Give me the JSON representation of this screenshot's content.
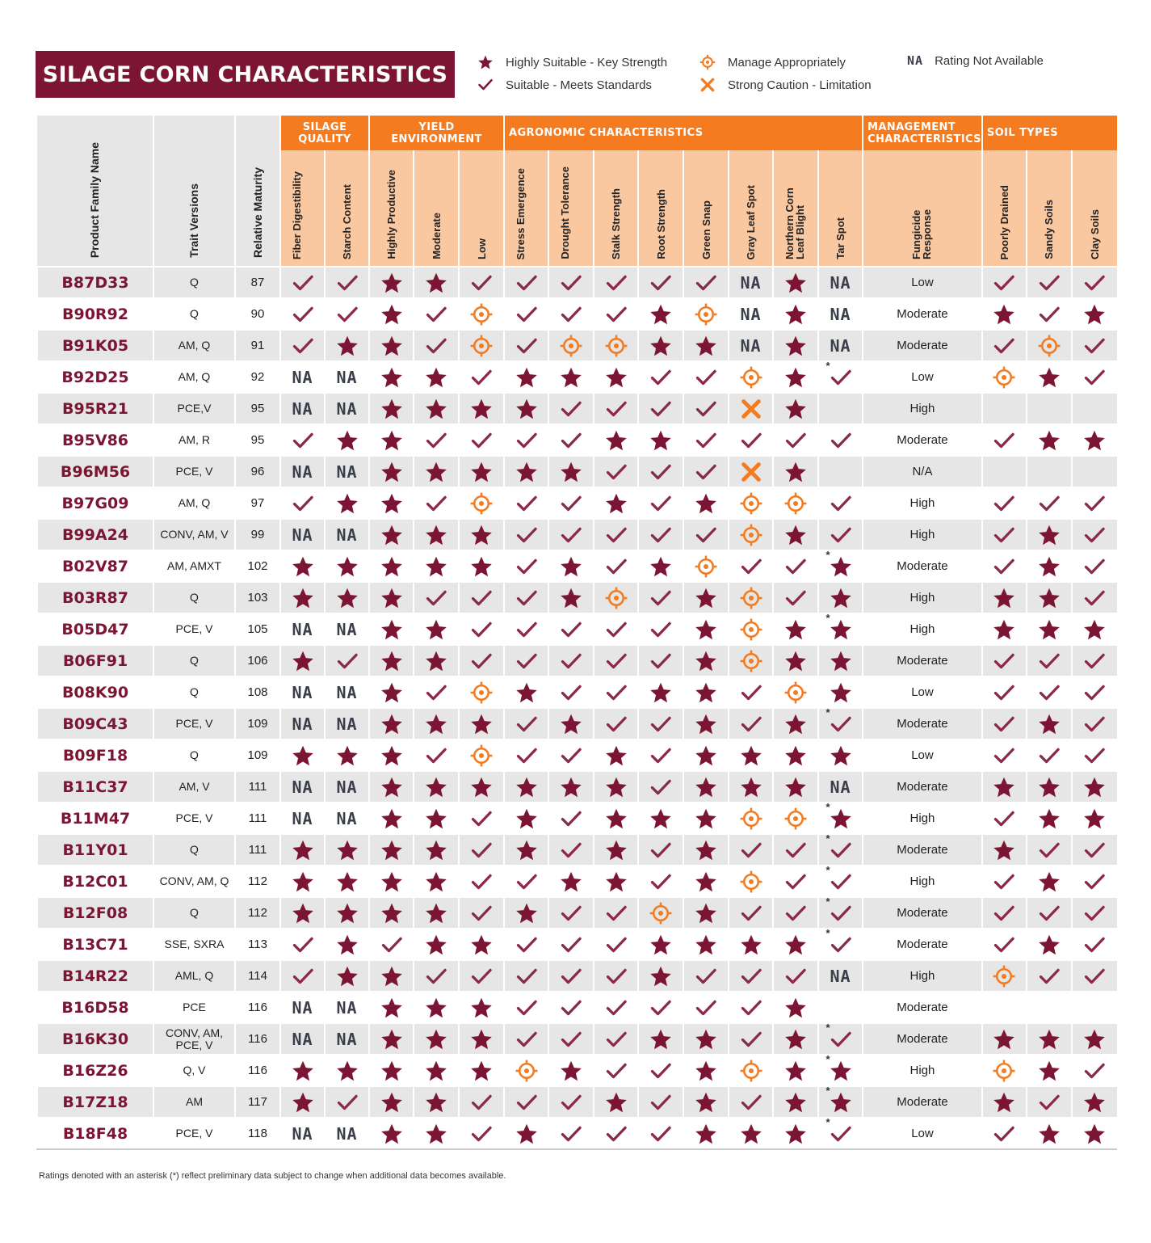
{
  "title": "SILAGE CORN CHARACTERISTICS",
  "colors": {
    "maroon": "#7b1533",
    "orange": "#f47b20",
    "peach": "#f9c7a0",
    "gray": "#e6e6e6",
    "na": "#3a3f4a"
  },
  "legend": {
    "star": "Highly Suitable - Key Strength",
    "check": "Suitable - Meets Standards",
    "target": "Manage Appropriately",
    "x": "Strong Caution - Limitation",
    "na_symbol": "NA",
    "na": "Rating Not Available"
  },
  "headers": {
    "product": "Product Family Name",
    "trait": "Trait Versions",
    "rm": "Relative Maturity",
    "groups": {
      "silage": "SILAGE QUALITY",
      "yield": "YIELD ENVIRONMENT",
      "agro": "AGRONOMIC CHARACTERISTICS",
      "mgmt": "MANAGEMENT CHARACTERISTICS",
      "soil": "SOIL TYPES"
    },
    "cols": {
      "fiber": "Fiber Digestibility",
      "starch": "Starch Content",
      "hp": "Highly Productive",
      "mod": "Moderate",
      "low": "Low",
      "se": "Stress Emergence",
      "dt": "Drought Tolerance",
      "stalk": "Stalk Strength",
      "root": "Root Strength",
      "gs": "Green Snap",
      "gls": "Gray Leaf Spot",
      "nclb": "Northern Corn Leaf Blight",
      "tar": "Tar Spot",
      "fung": "Fungicide Response",
      "pd": "Poorly Drained",
      "sandy": "Sandy Soils",
      "clay": "Clay Soils"
    }
  },
  "rating_key": "S = Highly Suitable, C = Suitable, T = Manage Appropriately, X = Strong Caution, N = Rating Not Available, - = blank, * = preliminary",
  "rows": [
    {
      "name": "B87D33",
      "trait": "Q",
      "rm": "87",
      "r": [
        "C",
        "C",
        "S",
        "S",
        "C",
        "C",
        "C",
        "C",
        "C",
        "C",
        "N",
        "S",
        "N"
      ],
      "fung": "Low",
      "soil": [
        "C",
        "C",
        "C"
      ]
    },
    {
      "name": "B90R92",
      "trait": "Q",
      "rm": "90",
      "r": [
        "C",
        "C",
        "S",
        "C",
        "T",
        "C",
        "C",
        "C",
        "S",
        "T",
        "N",
        "S",
        "N"
      ],
      "fung": "Moderate",
      "soil": [
        "S",
        "C",
        "S"
      ]
    },
    {
      "name": "B91K05",
      "trait": "AM, Q",
      "rm": "91",
      "r": [
        "C",
        "S",
        "S",
        "C",
        "T",
        "C",
        "T",
        "T",
        "S",
        "S",
        "N",
        "S",
        "N"
      ],
      "fung": "Moderate",
      "soil": [
        "C",
        "T",
        "C"
      ]
    },
    {
      "name": "B92D25",
      "trait": "AM, Q",
      "rm": "92",
      "r": [
        "N",
        "N",
        "S",
        "S",
        "C",
        "S",
        "S",
        "S",
        "C",
        "C",
        "T",
        "S",
        "C*"
      ],
      "fung": "Low",
      "soil": [
        "T",
        "S",
        "C"
      ]
    },
    {
      "name": "B95R21",
      "trait": "PCE,V",
      "rm": "95",
      "r": [
        "N",
        "N",
        "S",
        "S",
        "S",
        "S",
        "C",
        "C",
        "C",
        "C",
        "X",
        "S",
        "-"
      ],
      "fung": "High",
      "soil": [
        "-",
        "-",
        "-"
      ]
    },
    {
      "name": "B95V86",
      "trait": "AM, R",
      "rm": "95",
      "r": [
        "C",
        "S",
        "S",
        "C",
        "C",
        "C",
        "C",
        "S",
        "S",
        "C",
        "C",
        "C",
        "C"
      ],
      "fung": "Moderate",
      "soil": [
        "C",
        "S",
        "S"
      ]
    },
    {
      "name": "B96M56",
      "trait": "PCE, V",
      "rm": "96",
      "r": [
        "N",
        "N",
        "S",
        "S",
        "S",
        "S",
        "S",
        "C",
        "C",
        "C",
        "X",
        "S",
        "-"
      ],
      "fung": "N/A",
      "soil": [
        "-",
        "-",
        "-"
      ]
    },
    {
      "name": "B97G09",
      "trait": "AM, Q",
      "rm": "97",
      "r": [
        "C",
        "S",
        "S",
        "C",
        "T",
        "C",
        "C",
        "S",
        "C",
        "S",
        "T",
        "T",
        "C"
      ],
      "fung": "High",
      "soil": [
        "C",
        "C",
        "C"
      ]
    },
    {
      "name": "B99A24",
      "trait": "CONV, AM, V",
      "rm": "99",
      "r": [
        "N",
        "N",
        "S",
        "S",
        "S",
        "C",
        "C",
        "C",
        "C",
        "C",
        "T",
        "S",
        "C"
      ],
      "fung": "High",
      "soil": [
        "C",
        "S",
        "C"
      ]
    },
    {
      "name": "B02V87",
      "trait": "AM, AMXT",
      "rm": "102",
      "r": [
        "S",
        "S",
        "S",
        "S",
        "S",
        "C",
        "S",
        "C",
        "S",
        "T",
        "C",
        "C",
        "S*"
      ],
      "fung": "Moderate",
      "soil": [
        "C",
        "S",
        "C"
      ]
    },
    {
      "name": "B03R87",
      "trait": "Q",
      "rm": "103",
      "r": [
        "S",
        "S",
        "S",
        "C",
        "C",
        "C",
        "S",
        "T",
        "C",
        "S",
        "T",
        "C",
        "S"
      ],
      "fung": "High",
      "soil": [
        "S",
        "S",
        "C"
      ]
    },
    {
      "name": "B05D47",
      "trait": "PCE, V",
      "rm": "105",
      "r": [
        "N",
        "N",
        "S",
        "S",
        "C",
        "C",
        "C",
        "C",
        "C",
        "S",
        "T",
        "S",
        "S*"
      ],
      "fung": "High",
      "soil": [
        "S",
        "S",
        "S"
      ]
    },
    {
      "name": "B06F91",
      "trait": "Q",
      "rm": "106",
      "r": [
        "S",
        "C",
        "S",
        "S",
        "C",
        "C",
        "C",
        "C",
        "C",
        "S",
        "T",
        "S",
        "S"
      ],
      "fung": "Moderate",
      "soil": [
        "C",
        "C",
        "C"
      ]
    },
    {
      "name": "B08K90",
      "trait": "Q",
      "rm": "108",
      "r": [
        "N",
        "N",
        "S",
        "C",
        "T",
        "S",
        "C",
        "C",
        "S",
        "S",
        "C",
        "T",
        "S"
      ],
      "fung": "Low",
      "soil": [
        "C",
        "C",
        "C"
      ]
    },
    {
      "name": "B09C43",
      "trait": "PCE, V",
      "rm": "109",
      "r": [
        "N",
        "N",
        "S",
        "S",
        "S",
        "C",
        "S",
        "C",
        "C",
        "S",
        "C",
        "S",
        "C*"
      ],
      "fung": "Moderate",
      "soil": [
        "C",
        "S",
        "C"
      ]
    },
    {
      "name": "B09F18",
      "trait": "Q",
      "rm": "109",
      "r": [
        "S",
        "S",
        "S",
        "C",
        "T",
        "C",
        "C",
        "S",
        "C",
        "S",
        "S",
        "S",
        "S"
      ],
      "fung": "Low",
      "soil": [
        "C",
        "C",
        "C"
      ]
    },
    {
      "name": "B11C37",
      "trait": "AM, V",
      "rm": "111",
      "r": [
        "N",
        "N",
        "S",
        "S",
        "S",
        "S",
        "S",
        "S",
        "C",
        "S",
        "S",
        "S",
        "N"
      ],
      "fung": "Moderate",
      "soil": [
        "S",
        "S",
        "S"
      ]
    },
    {
      "name": "B11M47",
      "trait": "PCE, V",
      "rm": "111",
      "r": [
        "N",
        "N",
        "S",
        "S",
        "C",
        "S",
        "C",
        "S",
        "S",
        "S",
        "T",
        "T",
        "S*"
      ],
      "fung": "High",
      "soil": [
        "C",
        "S",
        "S"
      ]
    },
    {
      "name": "B11Y01",
      "trait": "Q",
      "rm": "111",
      "r": [
        "S",
        "S",
        "S",
        "S",
        "C",
        "S",
        "C",
        "S",
        "C",
        "S",
        "C",
        "C",
        "C*"
      ],
      "fung": "Moderate",
      "soil": [
        "S",
        "C",
        "C"
      ]
    },
    {
      "name": "B12C01",
      "trait": "CONV, AM, Q",
      "rm": "112",
      "r": [
        "S",
        "S",
        "S",
        "S",
        "C",
        "C",
        "S",
        "S",
        "C",
        "S",
        "T",
        "C",
        "C*"
      ],
      "fung": "High",
      "soil": [
        "C",
        "S",
        "C"
      ]
    },
    {
      "name": "B12F08",
      "trait": "Q",
      "rm": "112",
      "r": [
        "S",
        "S",
        "S",
        "S",
        "C",
        "S",
        "C",
        "C",
        "T",
        "S",
        "C",
        "C",
        "C*"
      ],
      "fung": "Moderate",
      "soil": [
        "C",
        "C",
        "C"
      ]
    },
    {
      "name": "B13C71",
      "trait": "SSE, SXRA",
      "rm": "113",
      "r": [
        "C",
        "S",
        "C",
        "S",
        "S",
        "C",
        "C",
        "C",
        "S",
        "S",
        "S",
        "S",
        "C*"
      ],
      "fung": "Moderate",
      "soil": [
        "C",
        "S",
        "C"
      ]
    },
    {
      "name": "B14R22",
      "trait": "AML, Q",
      "rm": "114",
      "r": [
        "C",
        "S",
        "S",
        "C",
        "C",
        "C",
        "C",
        "C",
        "S",
        "C",
        "C",
        "C",
        "N"
      ],
      "fung": "High",
      "soil": [
        "T",
        "C",
        "C"
      ]
    },
    {
      "name": "B16D58",
      "trait": "PCE",
      "rm": "116",
      "r": [
        "N",
        "N",
        "S",
        "S",
        "S",
        "C",
        "C",
        "C",
        "C",
        "C",
        "C",
        "S",
        "-"
      ],
      "fung": "Moderate",
      "soil": [
        "-",
        "-",
        "-"
      ]
    },
    {
      "name": "B16K30",
      "trait": "CONV, AM, PCE, V",
      "rm": "116",
      "r": [
        "N",
        "N",
        "S",
        "S",
        "S",
        "C",
        "C",
        "C",
        "S",
        "S",
        "C",
        "S",
        "C*"
      ],
      "fung": "Moderate",
      "soil": [
        "S",
        "S",
        "S"
      ]
    },
    {
      "name": "B16Z26",
      "trait": "Q, V",
      "rm": "116",
      "r": [
        "S",
        "S",
        "S",
        "S",
        "S",
        "T",
        "S",
        "C",
        "C",
        "S",
        "T",
        "S",
        "S*"
      ],
      "fung": "High",
      "soil": [
        "T",
        "S",
        "C"
      ]
    },
    {
      "name": "B17Z18",
      "trait": "AM",
      "rm": "117",
      "r": [
        "S",
        "C",
        "S",
        "S",
        "C",
        "C",
        "C",
        "S",
        "C",
        "S",
        "C",
        "S",
        "S*"
      ],
      "fung": "Moderate",
      "soil": [
        "S",
        "C",
        "S"
      ]
    },
    {
      "name": "B18F48",
      "trait": "PCE, V",
      "rm": "118",
      "r": [
        "N",
        "N",
        "S",
        "S",
        "C",
        "S",
        "C",
        "C",
        "C",
        "S",
        "S",
        "S",
        "C*"
      ],
      "fung": "Low",
      "soil": [
        "C",
        "S",
        "S"
      ]
    }
  ],
  "footnote": "Ratings denoted with an asterisk (*) reflect preliminary data subject to change when additional data becomes available."
}
